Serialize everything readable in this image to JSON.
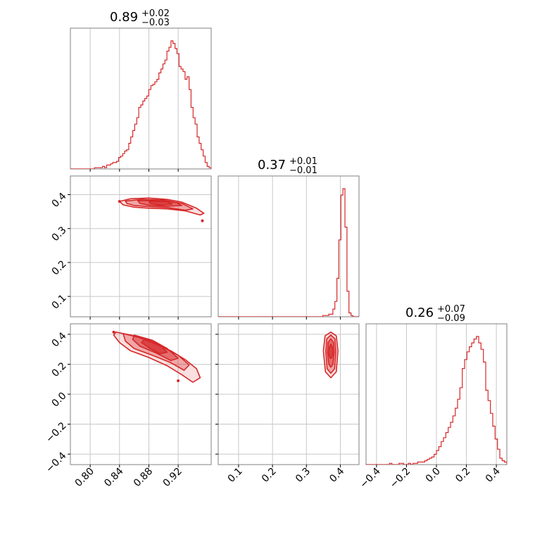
{
  "chart_data": {
    "type": "corner",
    "color": "#d62728",
    "grid": true,
    "parameters": [
      {
        "title": {
          "value": "0.89",
          "plus": "+0.02",
          "minus": "−0.03"
        },
        "range": [
          0.773,
          0.965
        ],
        "ticks": [
          0.8,
          0.84,
          0.88,
          0.92
        ],
        "tick_labels": [
          "0.80",
          "0.84",
          "0.88",
          "0.92"
        ],
        "histogram": {
          "x_start": 0.773,
          "x_end": 0.965,
          "counts": [
            0,
            0,
            0,
            0,
            0,
            0,
            0,
            0,
            0,
            0,
            0,
            0,
            1,
            1,
            1,
            1,
            2,
            1,
            3,
            3,
            4,
            5,
            5,
            6,
            9,
            10,
            12,
            14,
            15,
            20,
            25,
            30,
            35,
            40,
            48,
            50,
            53,
            55,
            57,
            62,
            65,
            66,
            68,
            70,
            75,
            78,
            82,
            85,
            92,
            95,
            100,
            98,
            94,
            90,
            80,
            78,
            76,
            70,
            72,
            62,
            48,
            40,
            35,
            25,
            20,
            15,
            10,
            5,
            2,
            1
          ]
        }
      },
      {
        "title": {
          "value": "0.37",
          "plus": "+0.01",
          "minus": "−0.01"
        },
        "range": [
          0.04,
          0.455
        ],
        "ticks": [
          0.1,
          0.2,
          0.3,
          0.4
        ],
        "tick_labels": [
          "0.1",
          "0.2",
          "0.3",
          "0.4"
        ],
        "histogram": {
          "x_start": 0.04,
          "x_end": 0.455,
          "counts": [
            0,
            0,
            0,
            0,
            0,
            0,
            0,
            0,
            0,
            0,
            0,
            0,
            0,
            0,
            0,
            0,
            0,
            0,
            0,
            0,
            0,
            0,
            0,
            0,
            0,
            0,
            0,
            0,
            0,
            0,
            0,
            0,
            0,
            0,
            0,
            0,
            0,
            0,
            0,
            0,
            0,
            0,
            0,
            0,
            0,
            0,
            0,
            0,
            0,
            0,
            0,
            0,
            1,
            1,
            1,
            2,
            2,
            6,
            12,
            30,
            60,
            95,
            100,
            70,
            20,
            3,
            1,
            0,
            0,
            0
          ]
        }
      },
      {
        "title": {
          "value": "0.26",
          "plus": "+0.07",
          "minus": "−0.09"
        },
        "range": [
          -0.47,
          0.47
        ],
        "ticks": [
          -0.4,
          -0.2,
          0.0,
          0.2,
          0.4
        ],
        "tick_labels": [
          "−0.4",
          "−0.2",
          "0.0",
          "0.2",
          "0.4"
        ],
        "histogram": {
          "x_start": -0.47,
          "x_end": 0.47,
          "counts": [
            0,
            0,
            0,
            0,
            0,
            0,
            0,
            0,
            0,
            0,
            1,
            0,
            0,
            0,
            1,
            1,
            0,
            0,
            1,
            0,
            1,
            1,
            2,
            2,
            2,
            3,
            4,
            5,
            6,
            8,
            11,
            14,
            18,
            21,
            25,
            29,
            33,
            38,
            44,
            51,
            60,
            75,
            82,
            88,
            92,
            95,
            98,
            100,
            95,
            90,
            80,
            58,
            50,
            40,
            30,
            20,
            12,
            5,
            3,
            2
          ]
        }
      }
    ],
    "pairs": [
      {
        "x_param": 0,
        "y_param": 1,
        "contours": [
          [
            [
              0.84,
              0.38
            ],
            [
              0.855,
              0.388
            ],
            [
              0.88,
              0.39
            ],
            [
              0.905,
              0.386
            ],
            [
              0.925,
              0.378
            ],
            [
              0.945,
              0.36
            ],
            [
              0.955,
              0.345
            ],
            [
              0.95,
              0.34
            ],
            [
              0.93,
              0.352
            ],
            [
              0.905,
              0.358
            ],
            [
              0.88,
              0.36
            ],
            [
              0.86,
              0.363
            ],
            [
              0.845,
              0.37
            ]
          ],
          [
            [
              0.848,
              0.381
            ],
            [
              0.87,
              0.386
            ],
            [
              0.9,
              0.384
            ],
            [
              0.925,
              0.374
            ],
            [
              0.94,
              0.358
            ],
            [
              0.93,
              0.354
            ],
            [
              0.905,
              0.362
            ],
            [
              0.88,
              0.365
            ],
            [
              0.86,
              0.368
            ],
            [
              0.85,
              0.374
            ]
          ],
          [
            [
              0.865,
              0.382
            ],
            [
              0.895,
              0.383
            ],
            [
              0.918,
              0.376
            ],
            [
              0.925,
              0.368
            ],
            [
              0.905,
              0.366
            ],
            [
              0.88,
              0.369
            ],
            [
              0.868,
              0.374
            ]
          ],
          [
            [
              0.88,
              0.38
            ],
            [
              0.905,
              0.379
            ],
            [
              0.912,
              0.372
            ],
            [
              0.895,
              0.37
            ],
            [
              0.882,
              0.374
            ]
          ]
        ],
        "samples": [
          [
            0.84,
            0.38
          ],
          [
            0.953,
            0.323
          ]
        ]
      },
      {
        "x_param": 0,
        "y_param": 2,
        "contours": [
          [
            [
              0.835,
              0.415
            ],
            [
              0.86,
              0.39
            ],
            [
              0.885,
              0.345
            ],
            [
              0.91,
              0.29
            ],
            [
              0.93,
              0.23
            ],
            [
              0.945,
              0.17
            ],
            [
              0.95,
              0.11
            ],
            [
              0.94,
              0.08
            ],
            [
              0.925,
              0.13
            ],
            [
              0.905,
              0.19
            ],
            [
              0.88,
              0.245
            ],
            [
              0.855,
              0.29
            ],
            [
              0.84,
              0.345
            ],
            [
              0.832,
              0.395
            ]
          ],
          [
            [
              0.845,
              0.405
            ],
            [
              0.87,
              0.375
            ],
            [
              0.895,
              0.325
            ],
            [
              0.92,
              0.26
            ],
            [
              0.935,
              0.195
            ],
            [
              0.928,
              0.16
            ],
            [
              0.91,
              0.21
            ],
            [
              0.885,
              0.26
            ],
            [
              0.86,
              0.305
            ],
            [
              0.848,
              0.355
            ]
          ],
          [
            [
              0.86,
              0.395
            ],
            [
              0.885,
              0.36
            ],
            [
              0.905,
              0.305
            ],
            [
              0.92,
              0.24
            ],
            [
              0.91,
              0.225
            ],
            [
              0.89,
              0.275
            ],
            [
              0.868,
              0.32
            ],
            [
              0.858,
              0.365
            ]
          ],
          [
            [
              0.875,
              0.37
            ],
            [
              0.895,
              0.33
            ],
            [
              0.905,
              0.28
            ],
            [
              0.895,
              0.27
            ],
            [
              0.88,
              0.31
            ],
            [
              0.87,
              0.345
            ]
          ]
        ],
        "samples": [
          [
            0.832,
            0.415
          ],
          [
            0.92,
            0.09
          ]
        ]
      },
      {
        "x_param": 1,
        "y_param": 2,
        "contours": [
          [
            [
              0.372,
              0.415
            ],
            [
              0.388,
              0.39
            ],
            [
              0.393,
              0.29
            ],
            [
              0.388,
              0.15
            ],
            [
              0.372,
              0.11
            ],
            [
              0.356,
              0.15
            ],
            [
              0.35,
              0.29
            ],
            [
              0.355,
              0.39
            ]
          ],
          [
            [
              0.372,
              0.395
            ],
            [
              0.384,
              0.37
            ],
            [
              0.387,
              0.285
            ],
            [
              0.383,
              0.17
            ],
            [
              0.372,
              0.14
            ],
            [
              0.361,
              0.17
            ],
            [
              0.357,
              0.285
            ],
            [
              0.36,
              0.37
            ]
          ],
          [
            [
              0.372,
              0.37
            ],
            [
              0.38,
              0.345
            ],
            [
              0.382,
              0.28
            ],
            [
              0.378,
              0.2
            ],
            [
              0.372,
              0.18
            ],
            [
              0.366,
              0.2
            ],
            [
              0.362,
              0.28
            ],
            [
              0.364,
              0.345
            ]
          ],
          [
            [
              0.372,
              0.335
            ],
            [
              0.377,
              0.31
            ],
            [
              0.378,
              0.27
            ],
            [
              0.374,
              0.24
            ],
            [
              0.37,
              0.24
            ],
            [
              0.366,
              0.27
            ],
            [
              0.367,
              0.31
            ]
          ]
        ],
        "samples": []
      }
    ]
  }
}
